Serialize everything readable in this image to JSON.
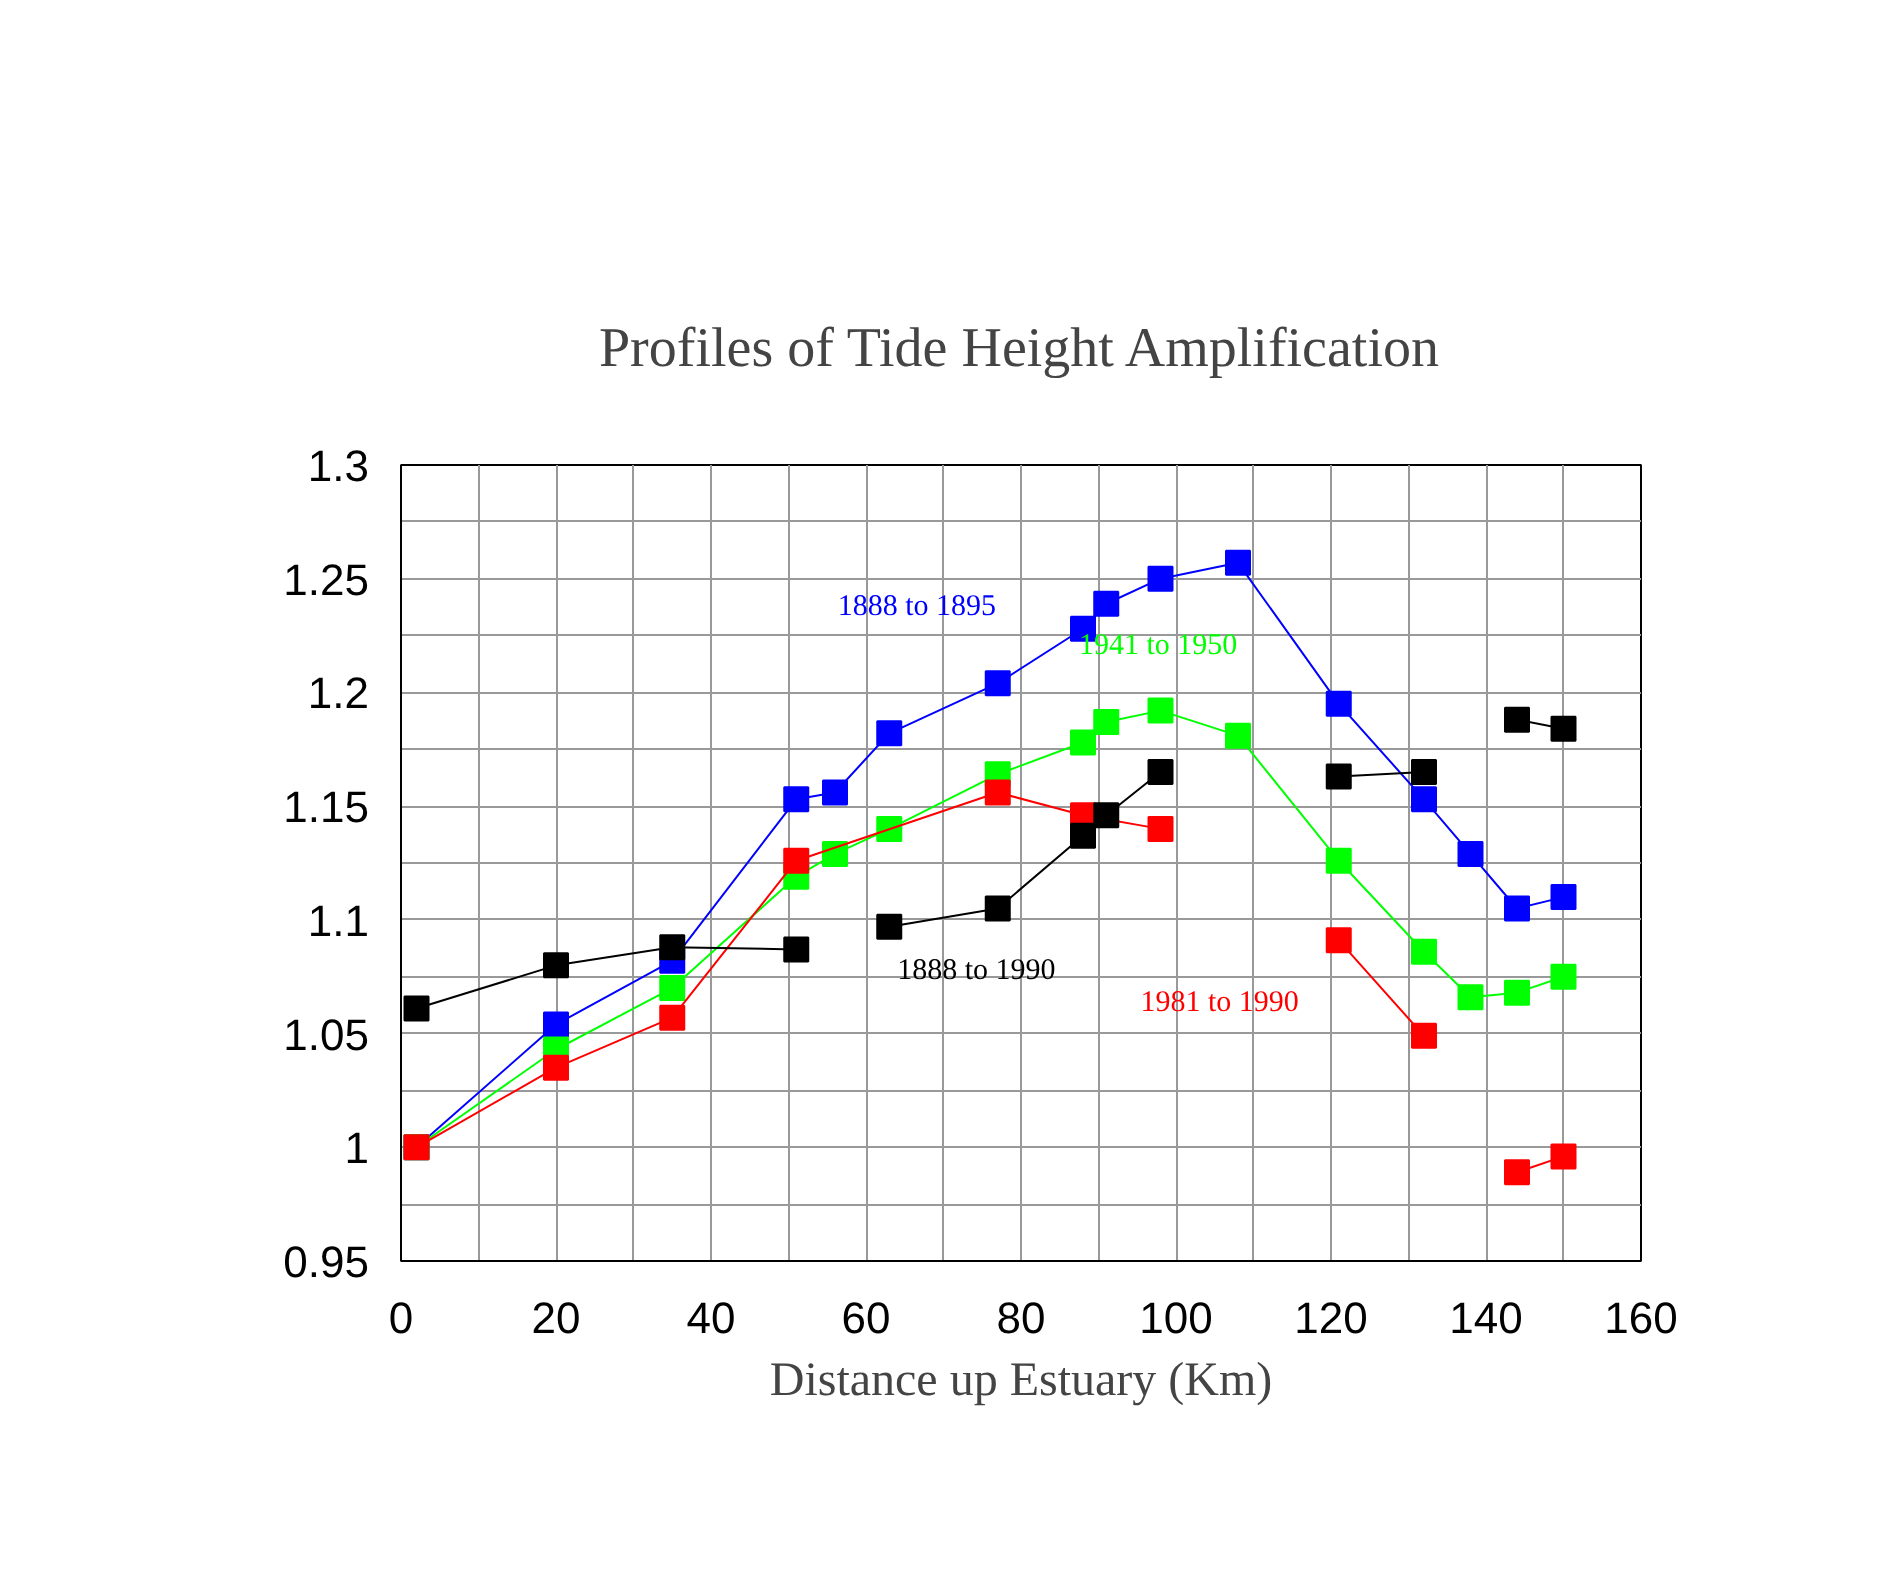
{
  "chart_data": {
    "type": "line",
    "title": "Profiles of Tide Height Amplification",
    "xlabel": "Distance up Estuary (Km)",
    "xlim": [
      0,
      160
    ],
    "ylim": [
      0.95,
      1.3
    ],
    "xticks": [
      0,
      {
        "value": 10,
        "label": null
      },
      20,
      {
        "value": 30,
        "label": null
      },
      40,
      {
        "value": 50,
        "label": null
      },
      60,
      {
        "value": 70,
        "label": null
      },
      80,
      {
        "value": 90,
        "label": null
      },
      100,
      {
        "value": 110,
        "label": null
      },
      120,
      {
        "value": 130,
        "label": null
      },
      140,
      {
        "value": 150,
        "label": null
      },
      160
    ],
    "yticks": [
      0.95,
      {
        "value": 0.975,
        "label": null
      },
      1,
      {
        "value": 1.025,
        "label": null
      },
      1.05,
      {
        "value": 1.075,
        "label": null
      },
      1.1,
      {
        "value": 1.125,
        "label": null
      },
      1.15,
      {
        "value": 1.175,
        "label": null
      },
      1.2,
      {
        "value": 1.225,
        "label": null
      },
      1.25,
      {
        "value": 1.275,
        "label": null
      },
      1.3
    ],
    "grid": true,
    "marker": "square",
    "line_style": "solid",
    "legend": false,
    "series": [
      {
        "name": "1888 to 1895",
        "color": "#0000ff",
        "x": [
          2,
          20,
          35,
          51,
          56,
          63,
          77,
          88,
          91,
          98,
          108,
          121,
          132,
          138,
          144,
          150
        ],
        "values": [
          1.0,
          1.054,
          1.082,
          1.153,
          1.156,
          1.182,
          1.204,
          1.228,
          1.239,
          1.25,
          1.257,
          1.195,
          1.153,
          1.129,
          1.105,
          1.11
        ]
      },
      {
        "name": "1941 to 1950",
        "color": "#00ff00",
        "x": [
          2,
          20,
          35,
          51,
          56,
          63,
          77,
          88,
          91,
          98,
          108,
          121,
          132,
          138,
          144,
          150
        ],
        "values": [
          1.0,
          1.043,
          1.07,
          1.119,
          1.129,
          1.14,
          1.164,
          1.178,
          1.187,
          1.192,
          1.181,
          1.126,
          1.086,
          1.066,
          1.068,
          1.075
        ]
      },
      {
        "name": "1981 to 1990",
        "color": "#ff0000",
        "x": [
          2,
          20,
          35,
          51,
          77,
          88,
          98,
          110,
          121,
          132,
          138,
          144,
          150
        ],
        "values": [
          1.0,
          1.035,
          1.057,
          1.126,
          1.156,
          1.146,
          1.14,
          null,
          1.091,
          1.049,
          null,
          0.989,
          0.996
        ]
      },
      {
        "name": "1888 to 1990",
        "color": "#000000",
        "x": [
          2,
          20,
          35,
          51,
          57,
          63,
          77,
          88,
          91,
          98,
          110,
          121,
          132,
          138,
          144,
          150
        ],
        "values": [
          1.061,
          1.08,
          1.088,
          1.087,
          null,
          1.097,
          1.105,
          1.137,
          1.146,
          1.165,
          null,
          1.163,
          1.165,
          null,
          1.188,
          1.184
        ]
      }
    ]
  }
}
